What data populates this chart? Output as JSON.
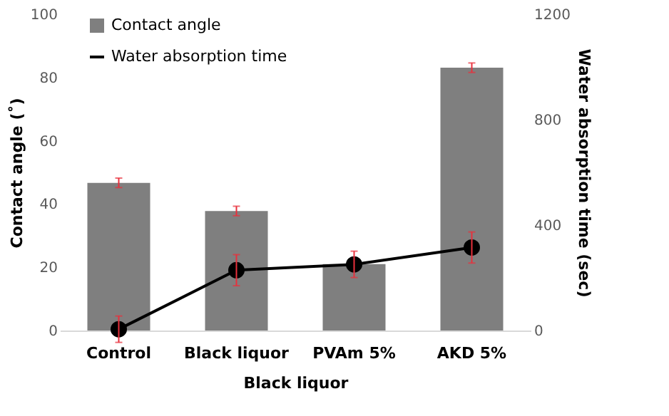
{
  "chart_data": {
    "type": "bar",
    "categories": [
      "Control",
      "Black liquor",
      "PVAm 5%",
      "AKD 5%"
    ],
    "xlabel": "Black liquor",
    "ylabel": "Contact angle (˚)",
    "y2label": "Water absorption time (sec)",
    "series": [
      {
        "name": "Contact angle",
        "color": "#7f7f7f",
        "values": [
          46.7,
          37.8,
          21,
          83.1
        ],
        "errors": [
          1.5,
          1.5,
          null,
          1.5
        ]
      },
      {
        "name": "Water absorption time",
        "type": "line",
        "axis": "y2",
        "color": "#000000",
        "values": [
          5,
          229,
          251,
          315
        ],
        "errors": [
          50,
          59,
          50,
          59
        ]
      }
    ],
    "ylim": [
      0,
      100
    ],
    "yticks": [
      0,
      20,
      40,
      60,
      80,
      100
    ],
    "y2lim": [
      0,
      1200
    ],
    "y2ticks": [
      0,
      400,
      800,
      1200
    ],
    "marker": "circle",
    "line_style": "solid",
    "grid": false,
    "legend": "top left"
  }
}
